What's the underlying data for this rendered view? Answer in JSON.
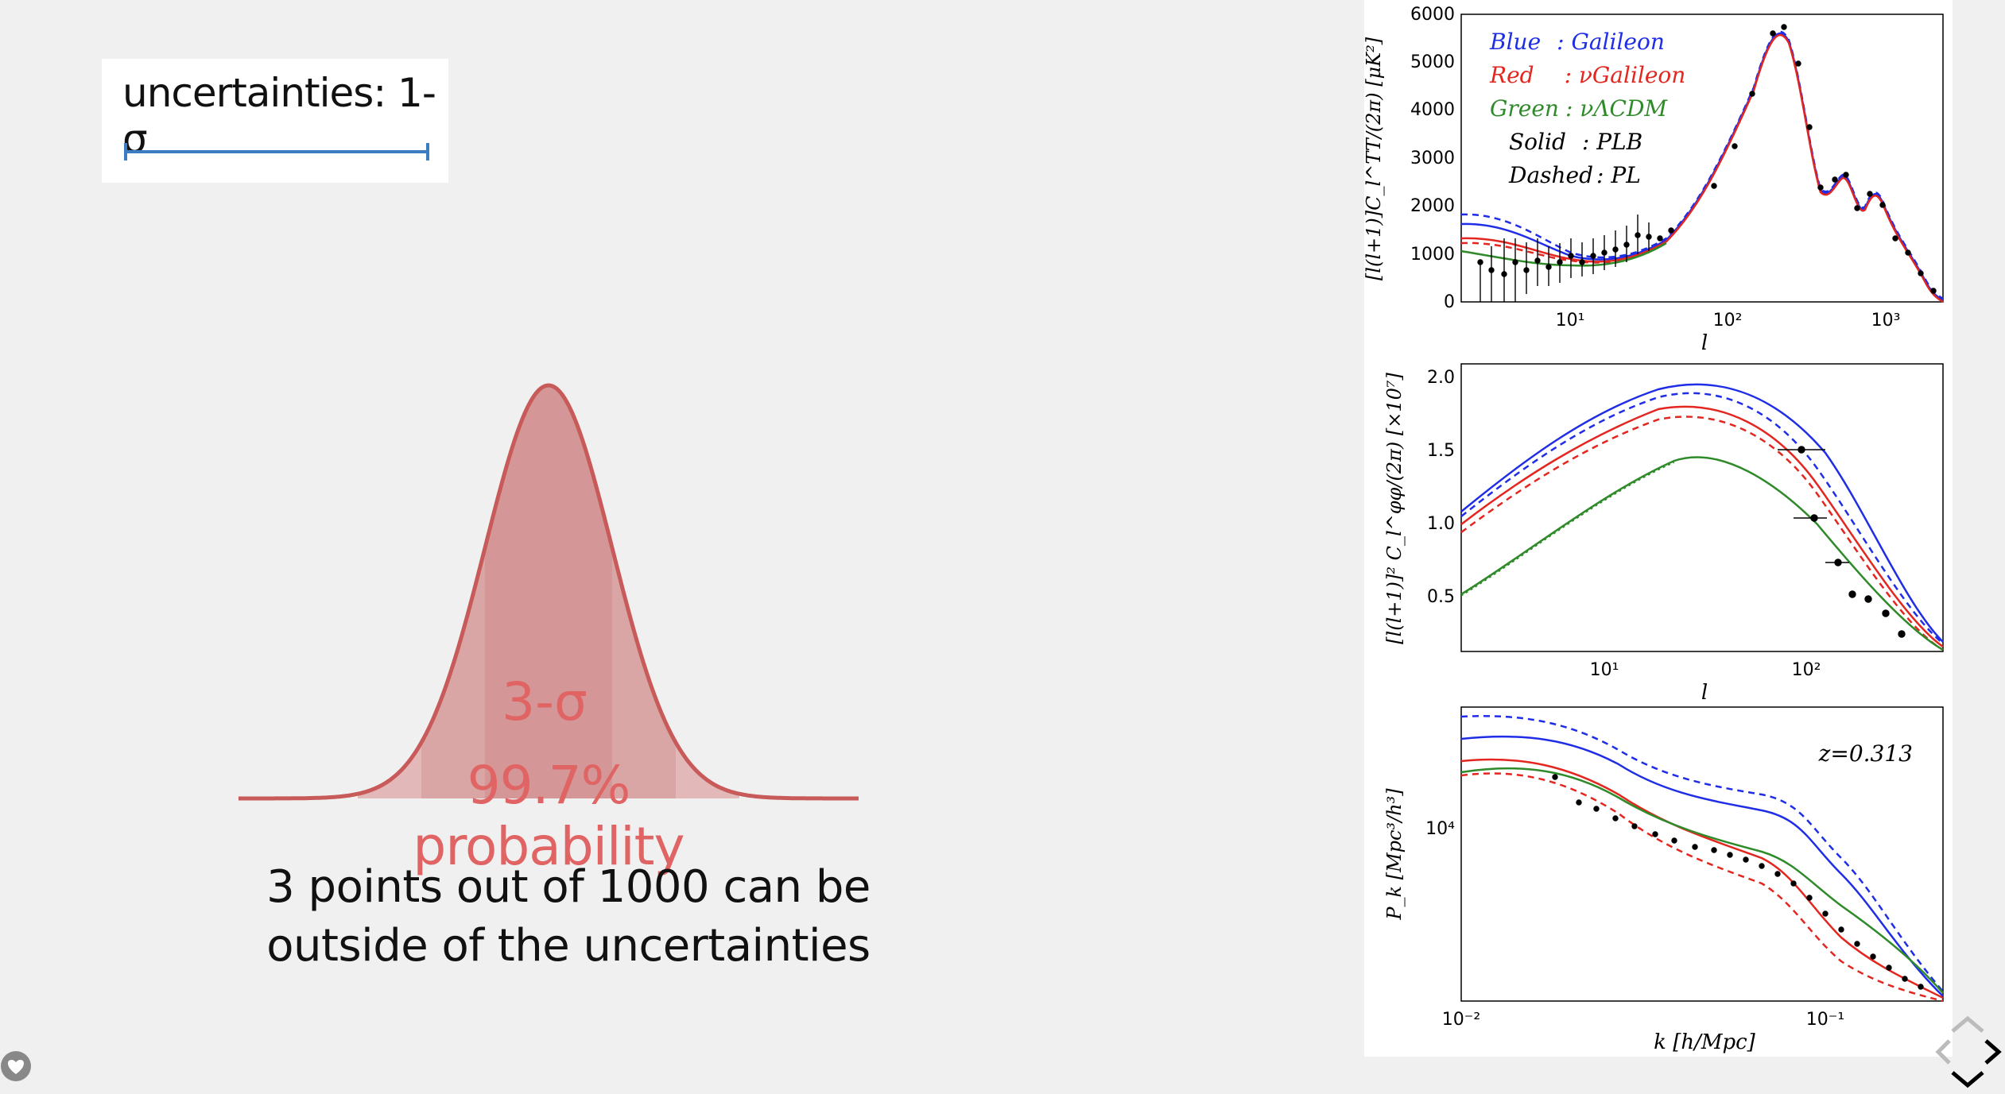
{
  "slide": {
    "legend_label": "uncertainties: 1-σ",
    "sigma_label": "3-σ",
    "probability_label": "99.7% probability",
    "note_line1": "3 points out of 1000 can be",
    "note_line2": "outside of the uncertainties"
  },
  "colors": {
    "curve": "#c85a5a",
    "fill": "#d9a0a0",
    "label_red": "#e06464",
    "legend_bar": "#3b7cc2",
    "blue": "#1f2ee6",
    "red": "#e3261f",
    "green": "#2f8a2a"
  },
  "figure": {
    "legend": {
      "blue_key": "Blue",
      "blue_val": ": Galileon",
      "red_key": "Red",
      "red_val": ": νGalileon",
      "green_key": "Green",
      "green_val": ": νΛCDM",
      "solid_key": "Solid",
      "solid_val": ": PLB",
      "dashed_key": "Dashed",
      "dashed_val": ": PL"
    },
    "panel1": {
      "ylabel": "[l(l+1)]C_l^TT/(2π) [μK²]",
      "xlabel": "l",
      "yticks": [
        "0",
        "1000",
        "2000",
        "3000",
        "4000",
        "5000",
        "6000"
      ],
      "xticks": [
        "10¹",
        "10²",
        "10³"
      ]
    },
    "panel2": {
      "ylabel": "[l(l+1)]² C_l^φφ/(2π) [×10⁷]",
      "xlabel": "l",
      "yticks": [
        "0.5",
        "1.0",
        "1.5",
        "2.0"
      ],
      "xticks": [
        "10¹",
        "10²"
      ]
    },
    "panel3": {
      "ylabel": "P_k [Mpc³/h³]",
      "xlabel": "k [h/Mpc]",
      "ytick": "10⁴",
      "xticks": [
        "10⁻²",
        "10⁻¹"
      ],
      "annotation": "z=0.313"
    }
  },
  "controls": {
    "nav_icon": "navigation-arrows-icon",
    "help_icon": "heart-icon"
  }
}
